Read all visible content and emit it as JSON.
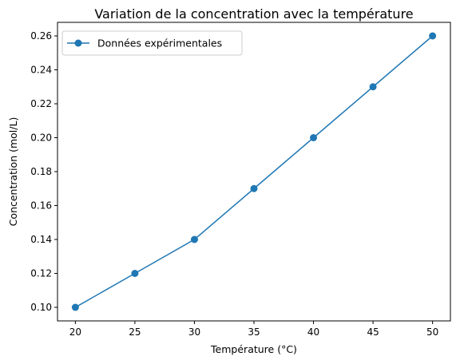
{
  "chart_data": {
    "type": "line",
    "title": "Variation de la concentration avec la température",
    "xlabel": "Température (°C)",
    "ylabel": "Concentration (mol/L)",
    "x": [
      20,
      25,
      30,
      35,
      40,
      45,
      50
    ],
    "series": [
      {
        "name": "Données expérimentales",
        "values": [
          0.1,
          0.12,
          0.14,
          0.17,
          0.2,
          0.23,
          0.26
        ],
        "color": "#1f77b4",
        "marker": "circle"
      }
    ],
    "xlim": [
      18.5,
      51.5
    ],
    "ylim": [
      0.092,
      0.268
    ],
    "xticks": [
      "20",
      "25",
      "30",
      "35",
      "40",
      "45",
      "50"
    ],
    "yticks": [
      "0.10",
      "0.12",
      "0.14",
      "0.16",
      "0.18",
      "0.20",
      "0.22",
      "0.24",
      "0.26"
    ],
    "grid": false,
    "legend_position": "upper-left"
  }
}
